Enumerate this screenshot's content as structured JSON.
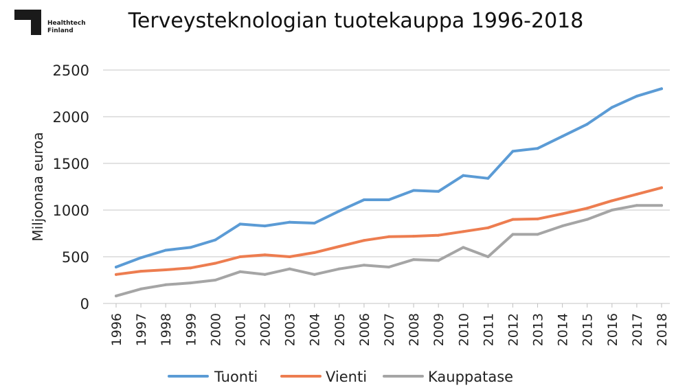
{
  "logo": {
    "line1": "Healthtech",
    "line2": "Finland"
  },
  "chart_data": {
    "type": "line",
    "title": "Terveysteknologian tuotekauppa 1996-2018",
    "xlabel": "",
    "ylabel": "Miljoonaa euroa",
    "ylim": [
      0,
      2500
    ],
    "yticks": [
      0,
      500,
      1000,
      1500,
      2000,
      2500
    ],
    "grid": true,
    "legend_position": "bottom",
    "x": [
      "1996",
      "1997",
      "1998",
      "1999",
      "2000",
      "2001",
      "2002",
      "2003",
      "2004",
      "2005",
      "2006",
      "2007",
      "2008",
      "2009",
      "2010",
      "2011",
      "2012",
      "2013",
      "2014",
      "2015",
      "2016",
      "2017",
      "2018"
    ],
    "series": [
      {
        "name": "Tuonti",
        "color": "#5b9bd5",
        "values": [
          390,
          490,
          570,
          600,
          680,
          850,
          830,
          870,
          860,
          990,
          1110,
          1110,
          1210,
          1200,
          1370,
          1340,
          1630,
          1660,
          1790,
          1920,
          2100,
          2220,
          2300
        ]
      },
      {
        "name": "Vienti",
        "color": "#ed7d50",
        "values": [
          310,
          345,
          360,
          380,
          430,
          500,
          520,
          500,
          545,
          610,
          675,
          715,
          720,
          730,
          770,
          810,
          900,
          905,
          960,
          1020,
          1100,
          1170,
          1240
        ]
      },
      {
        "name": "Kauppatase",
        "color": "#a5a5a5",
        "values": [
          80,
          155,
          200,
          220,
          250,
          340,
          310,
          370,
          310,
          370,
          410,
          390,
          470,
          460,
          600,
          500,
          740,
          740,
          830,
          900,
          1000,
          1050,
          1050
        ]
      }
    ]
  }
}
